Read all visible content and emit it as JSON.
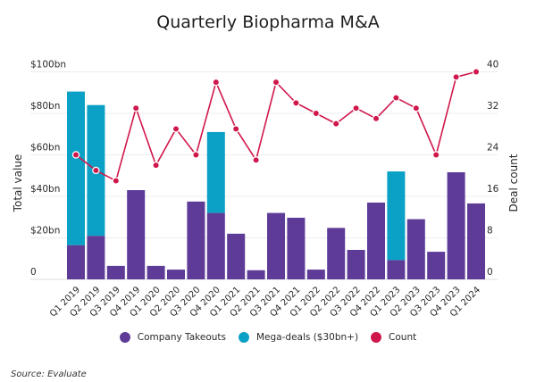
{
  "title": "Quarterly Biopharma M&A",
  "source": "Source: Evaluate",
  "colors": {
    "takeouts": "#5f3b98",
    "mega": "#0ba0c5",
    "count": "#d0174b",
    "grid": "#ececec"
  },
  "legend": [
    {
      "label": "Company Takeouts",
      "color": "#5f3b98"
    },
    {
      "label": "Mega-deals ($30bn+)",
      "color": "#0ba0c5"
    },
    {
      "label": "Count",
      "color": "#d0174b"
    }
  ],
  "chart_data": {
    "type": "bar",
    "title": "Quarterly Biopharma M&A",
    "xlabel": "",
    "ylabel": "Total value",
    "y2label": "Deal count",
    "ylim": [
      0,
      100
    ],
    "y2lim": [
      0,
      40
    ],
    "yticks": [
      0,
      20,
      40,
      60,
      80,
      100
    ],
    "ytick_labels": [
      "0",
      "$20bn",
      "$40bn",
      "$60bn",
      "$80bn",
      "$100bn"
    ],
    "y2ticks": [
      0,
      8,
      16,
      24,
      32,
      40
    ],
    "y2tick_labels": [
      "0",
      "8",
      "16",
      "24",
      "32",
      "40"
    ],
    "grid": true,
    "legend_position": "bottom",
    "categories": [
      "Q1 2019",
      "Q2 2019",
      "Q3 2019",
      "Q4 2019",
      "Q1 2020",
      "Q2 2020",
      "Q3 2020",
      "Q4 2020",
      "Q1 2021",
      "Q2 2021",
      "Q3 2021",
      "Q4 2021",
      "Q1 2022",
      "Q2 2022",
      "Q3 2022",
      "Q4 2022",
      "Q1 2023",
      "Q2 2023",
      "Q3 2023",
      "Q4 2023",
      "Q1 2024"
    ],
    "series": [
      {
        "name": "Company Takeouts",
        "type": "bar",
        "axis": "left",
        "stacked": true,
        "values": [
          16.5,
          21,
          6.5,
          43,
          6.5,
          4.7,
          37.5,
          32,
          22,
          4.4,
          32,
          29.7,
          4.7,
          24.8,
          14.2,
          37,
          9.3,
          29,
          13.3,
          51.6,
          36.6
        ]
      },
      {
        "name": "Mega-deals ($30bn+)",
        "type": "bar",
        "axis": "left",
        "stacked": true,
        "values": [
          74,
          63,
          0,
          0,
          0,
          0,
          0,
          39,
          0,
          0,
          0,
          0,
          0,
          0,
          0,
          0,
          42.7,
          0,
          0,
          0,
          0
        ]
      },
      {
        "name": "Count",
        "type": "line",
        "axis": "right",
        "values": [
          24,
          21,
          19,
          33,
          22,
          29,
          24,
          38,
          29,
          23,
          38,
          34,
          32,
          30,
          33,
          31,
          35,
          33,
          24,
          39,
          40
        ]
      }
    ]
  }
}
